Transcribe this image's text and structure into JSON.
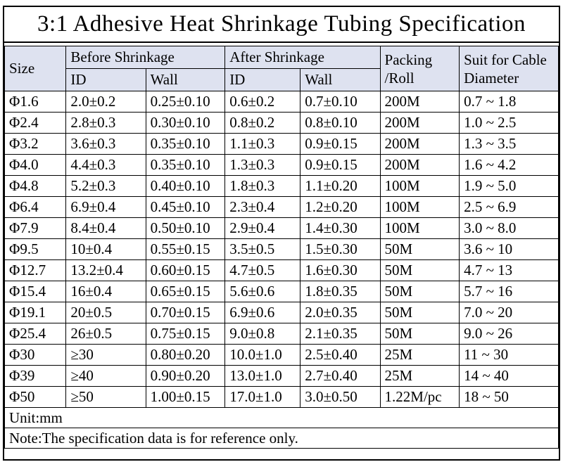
{
  "title": "3:1 Adhesive Heat Shrinkage Tubing Specification",
  "colors": {
    "header_background": "#dee2f0",
    "border": "#000000",
    "background": "#ffffff",
    "text": "#000000"
  },
  "table": {
    "header": {
      "size": "Size",
      "before": "Before Shrinkage",
      "after": "After Shrinkage",
      "packing_line1": "Packing",
      "packing_line2": "/Roll",
      "suit_line1": "Suit for Cable",
      "suit_line2": "Diameter",
      "sub": [
        "ID",
        "Wall",
        "ID",
        "Wall"
      ]
    },
    "rows": [
      [
        "Φ1.6",
        "2.0±0.2",
        "0.25±0.10",
        "0.6±0.2",
        "0.7±0.10",
        "200M",
        "0.7 ~ 1.8"
      ],
      [
        "Φ2.4",
        "2.8±0.3",
        "0.30±0.10",
        "0.8±0.2",
        "0.8±0.10",
        "200M",
        "1.0 ~ 2.5"
      ],
      [
        "Φ3.2",
        "3.6±0.3",
        "0.35±0.10",
        "1.1±0.3",
        "0.9±0.15",
        "200M",
        "1.3 ~ 3.5"
      ],
      [
        "Φ4.0",
        "4.4±0.3",
        "0.35±0.10",
        "1.3±0.3",
        "0.9±0.15",
        "200M",
        "1.6 ~ 4.2"
      ],
      [
        "Φ4.8",
        "5.2±0.3",
        "0.40±0.10",
        "1.8±0.3",
        "1.1±0.20",
        "100M",
        "1.9 ~ 5.0"
      ],
      [
        "Φ6.4",
        "6.9±0.4",
        "0.45±0.10",
        "2.3±0.4",
        "1.2±0.20",
        "100M",
        "2.5 ~ 6.9"
      ],
      [
        "Φ7.9",
        "8.4±0.4",
        "0.50±0.10",
        "2.9±0.4",
        "1.4±0.30",
        "100M",
        "3.0 ~ 8.0"
      ],
      [
        "Φ9.5",
        "10±0.4",
        "0.55±0.15",
        "3.5±0.5",
        "1.5±0.30",
        "50M",
        "3.6 ~ 10"
      ],
      [
        "Φ12.7",
        "13.2±0.4",
        "0.60±0.15",
        "4.7±0.5",
        "1.6±0.30",
        "50M",
        "4.7 ~ 13"
      ],
      [
        "Φ15.4",
        "16±0.4",
        "0.65±0.15",
        "5.6±0.6",
        "1.8±0.35",
        "50M",
        "5.7 ~ 16"
      ],
      [
        "Φ19.1",
        "20±0.5",
        "0.70±0.15",
        "6.9±0.6",
        "2.0±0.35",
        "50M",
        "7.0 ~ 20"
      ],
      [
        "Φ25.4",
        "26±0.5",
        "0.75±0.15",
        "9.0±0.8",
        "2.1±0.35",
        "50M",
        "9.0 ~ 26"
      ],
      [
        "Φ30",
        "≥30",
        "0.80±0.20",
        "10.0±1.0",
        "2.5±0.40",
        "25M",
        "11 ~ 30"
      ],
      [
        "Φ39",
        "≥40",
        "0.90±0.20",
        "13.0±1.0",
        "2.7±0.40",
        "25M",
        "14 ~ 40"
      ],
      [
        "Φ50",
        "≥50",
        "1.00±0.15",
        "17.0±1.0",
        "3.0±0.50",
        "1.22M/pc",
        "18 ~ 50"
      ]
    ]
  },
  "footer": {
    "unit": "Unit:mm",
    "note": "Note:The specification data is for reference only."
  }
}
